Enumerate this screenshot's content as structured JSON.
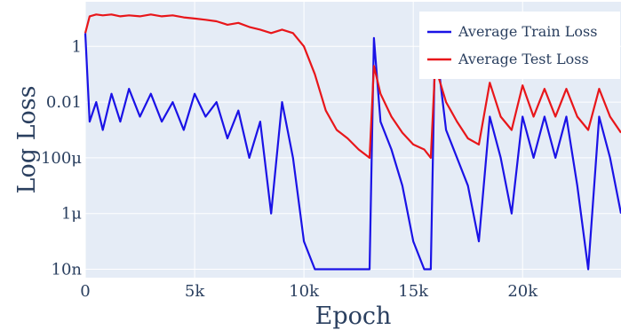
{
  "chart_data": {
    "type": "line",
    "xlabel": "Epoch",
    "ylabel": "Log Loss",
    "x_ticks": [
      {
        "value": 0,
        "label": "0"
      },
      {
        "value": 5000,
        "label": "5k"
      },
      {
        "value": 10000,
        "label": "10k"
      },
      {
        "value": 15000,
        "label": "15k"
      },
      {
        "value": 20000,
        "label": "20k"
      }
    ],
    "y_scale": "log",
    "y_ticks": [
      {
        "value": 1e-08,
        "label": "10n"
      },
      {
        "value": 1e-06,
        "label": "1μ"
      },
      {
        "value": 0.0001,
        "label": "100μ"
      },
      {
        "value": 0.01,
        "label": "0.01"
      },
      {
        "value": 1,
        "label": "1"
      }
    ],
    "xlim": [
      0,
      24500
    ],
    "ylim": [
      5e-09,
      40
    ],
    "grid": true,
    "legend_position": "top-right",
    "colors": {
      "train": "#1a12e6",
      "test": "#e8161a",
      "background": "#e5ecf6",
      "grid": "#ffffff"
    },
    "series": [
      {
        "name": "Average Train Loss",
        "color": "#1a12e6",
        "x": [
          0,
          200,
          500,
          800,
          1200,
          1600,
          2000,
          2500,
          3000,
          3500,
          4000,
          4500,
          5000,
          5500,
          6000,
          6500,
          7000,
          7500,
          8000,
          8500,
          9000,
          9500,
          10000,
          10500,
          11000,
          11500,
          12000,
          12500,
          13000,
          13200,
          13500,
          14000,
          14500,
          15000,
          15500,
          15800,
          16000,
          16500,
          17000,
          17500,
          18000,
          18500,
          19000,
          19500,
          20000,
          20500,
          21000,
          21500,
          22000,
          22500,
          23000,
          23500,
          24000,
          24500
        ],
        "y": [
          3,
          0.002,
          0.01,
          0.001,
          0.02,
          0.002,
          0.03,
          0.003,
          0.02,
          0.002,
          0.01,
          0.001,
          0.02,
          0.003,
          0.01,
          0.0005,
          0.005,
          0.0001,
          0.002,
          1e-06,
          0.01,
          0.0001,
          1e-07,
          1e-08,
          1e-08,
          1e-08,
          1e-08,
          1e-08,
          1e-08,
          2,
          0.002,
          0.0002,
          1e-05,
          1e-07,
          1e-08,
          1e-08,
          2,
          0.001,
          0.0001,
          1e-05,
          1e-07,
          0.003,
          0.0001,
          1e-06,
          0.003,
          0.0001,
          0.003,
          0.0001,
          0.003,
          1e-05,
          1e-08,
          0.003,
          0.0001,
          1e-06
        ]
      },
      {
        "name": "Average Test Loss",
        "color": "#e8161a",
        "x": [
          0,
          200,
          500,
          800,
          1200,
          1600,
          2000,
          2500,
          3000,
          3500,
          4000,
          4500,
          5000,
          5500,
          6000,
          6500,
          7000,
          7500,
          8000,
          8500,
          9000,
          9500,
          10000,
          10500,
          11000,
          11500,
          12000,
          12500,
          13000,
          13200,
          13500,
          14000,
          14500,
          15000,
          15500,
          15800,
          16000,
          16500,
          17000,
          17500,
          18000,
          18500,
          19000,
          19500,
          20000,
          20500,
          21000,
          21500,
          22000,
          22500,
          23000,
          23500,
          24000,
          24500
        ],
        "y": [
          3,
          12,
          14,
          13,
          14,
          12,
          13,
          12,
          14,
          12,
          13,
          11,
          10,
          9,
          8,
          6,
          7,
          5,
          4,
          3,
          4,
          3,
          1,
          0.1,
          0.005,
          0.001,
          0.0005,
          0.0002,
          0.0001,
          0.2,
          0.02,
          0.003,
          0.0008,
          0.0003,
          0.0002,
          0.0001,
          0.2,
          0.01,
          0.002,
          0.0005,
          0.0003,
          0.05,
          0.003,
          0.001,
          0.04,
          0.003,
          0.03,
          0.003,
          0.03,
          0.003,
          0.001,
          0.03,
          0.003,
          0.0008
        ]
      }
    ]
  }
}
